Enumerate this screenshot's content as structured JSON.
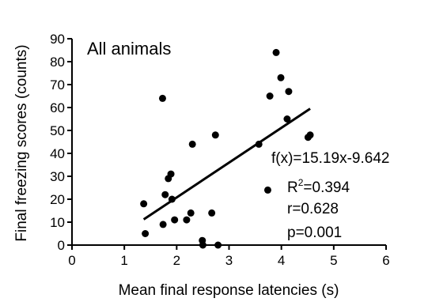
{
  "chart_data": {
    "type": "scatter",
    "title": "All animals",
    "xlabel": "Mean final response latencies (s)",
    "ylabel": "Final freezing scores (counts)",
    "xlim": [
      0,
      6
    ],
    "ylim": [
      0,
      90
    ],
    "xticks": [
      "0",
      "1",
      "2",
      "3",
      "4",
      "5",
      "6"
    ],
    "yticks": [
      "0",
      "10",
      "20",
      "30",
      "40",
      "50",
      "60",
      "70",
      "80",
      "90"
    ],
    "points": [
      {
        "x": 1.37,
        "y": 18
      },
      {
        "x": 1.4,
        "y": 5
      },
      {
        "x": 1.73,
        "y": 64
      },
      {
        "x": 1.74,
        "y": 9
      },
      {
        "x": 1.78,
        "y": 22
      },
      {
        "x": 1.84,
        "y": 29
      },
      {
        "x": 1.89,
        "y": 31
      },
      {
        "x": 1.91,
        "y": 20
      },
      {
        "x": 1.96,
        "y": 11
      },
      {
        "x": 2.19,
        "y": 11
      },
      {
        "x": 2.27,
        "y": 14
      },
      {
        "x": 2.3,
        "y": 44
      },
      {
        "x": 2.49,
        "y": 2
      },
      {
        "x": 2.5,
        "y": 0
      },
      {
        "x": 2.67,
        "y": 14
      },
      {
        "x": 2.74,
        "y": 48
      },
      {
        "x": 2.79,
        "y": 0
      },
      {
        "x": 3.57,
        "y": 44
      },
      {
        "x": 3.74,
        "y": 24
      },
      {
        "x": 3.78,
        "y": 65
      },
      {
        "x": 3.9,
        "y": 84
      },
      {
        "x": 3.99,
        "y": 73
      },
      {
        "x": 4.11,
        "y": 55
      },
      {
        "x": 4.14,
        "y": 67
      },
      {
        "x": 4.51,
        "y": 47
      },
      {
        "x": 4.55,
        "y": 48
      }
    ],
    "fit_line": {
      "x": [
        1.37,
        4.55
      ],
      "y": [
        11.2,
        59.5
      ]
    },
    "annotations": {
      "equation": "f(x)=15.19x-9.642",
      "r2_prefix": "R",
      "r2_sup": "2",
      "r2_value": "=0.394",
      "r": "r=0.628",
      "p": "p=0.001"
    },
    "grid": false,
    "legend": "none"
  }
}
